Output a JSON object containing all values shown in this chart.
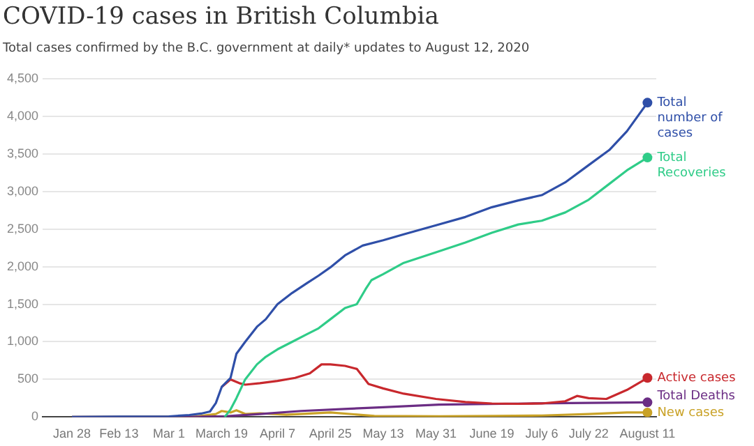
{
  "chart_data": {
    "type": "line",
    "title": "COVID-19 cases in British Columbia",
    "subtitle": "Total cases confirmed by the B.C. government at daily* updates to August 12, 2020",
    "xlim": [
      "2020-01-18",
      "2020-08-14"
    ],
    "xticks": [
      {
        "value": "2020-01-28",
        "label": "Jan 28"
      },
      {
        "value": "2020-02-13",
        "label": "Feb 13"
      },
      {
        "value": "2020-03-01",
        "label": "Mar 1"
      },
      {
        "value": "2020-03-19",
        "label": "March 19"
      },
      {
        "value": "2020-04-07",
        "label": "April 7"
      },
      {
        "value": "2020-04-25",
        "label": "April 25"
      },
      {
        "value": "2020-05-13",
        "label": "May 13"
      },
      {
        "value": "2020-05-31",
        "label": "May 31"
      },
      {
        "value": "2020-06-19",
        "label": "June 19"
      },
      {
        "value": "2020-07-06",
        "label": "July 6"
      },
      {
        "value": "2020-07-22",
        "label": "July 22"
      },
      {
        "value": "2020-08-11",
        "label": "August 11"
      }
    ],
    "ylim": [
      0,
      4500
    ],
    "yticks": [
      {
        "value": 0,
        "label": "0"
      },
      {
        "value": 500,
        "label": "500"
      },
      {
        "value": 1000,
        "label": "1,000"
      },
      {
        "value": 1500,
        "label": "1,500"
      },
      {
        "value": 2000,
        "label": "2,000"
      },
      {
        "value": 2500,
        "label": "2,500"
      },
      {
        "value": 3000,
        "label": "3,000"
      },
      {
        "value": 3500,
        "label": "3,500"
      },
      {
        "value": 4000,
        "label": "4,000"
      },
      {
        "value": 4500,
        "label": "4,500"
      }
    ],
    "grid": "y",
    "legend": false,
    "line_style": "solid",
    "series": [
      {
        "name": "Total number of cases",
        "color": "#2f4fa8",
        "x": [
          "2020-01-28",
          "2020-02-13",
          "2020-03-01",
          "2020-03-08",
          "2020-03-12",
          "2020-03-15",
          "2020-03-17",
          "2020-03-19",
          "2020-03-22",
          "2020-03-24",
          "2020-03-27",
          "2020-03-31",
          "2020-04-03",
          "2020-04-07",
          "2020-04-12",
          "2020-04-17",
          "2020-04-21",
          "2020-04-25",
          "2020-04-30",
          "2020-05-06",
          "2020-05-13",
          "2020-05-20",
          "2020-05-31",
          "2020-06-10",
          "2020-06-19",
          "2020-06-28",
          "2020-07-06",
          "2020-07-14",
          "2020-07-22",
          "2020-07-29",
          "2020-08-04",
          "2020-08-11"
        ],
        "values": [
          1,
          5,
          8,
          27,
          46,
          73,
          186,
          400,
          520,
          840,
          1000,
          1200,
          1300,
          1500,
          1650,
          1780,
          1880,
          1990,
          2150,
          2280,
          2350,
          2430,
          2550,
          2660,
          2790,
          2880,
          2950,
          3120,
          3350,
          3550,
          3800,
          4180
        ]
      },
      {
        "name": "Total Recoveries",
        "color": "#2fcc88",
        "x": [
          "2020-03-20",
          "2020-03-22",
          "2020-03-24",
          "2020-03-27",
          "2020-03-31",
          "2020-04-03",
          "2020-04-07",
          "2020-04-12",
          "2020-04-17",
          "2020-04-21",
          "2020-04-25",
          "2020-04-30",
          "2020-05-04",
          "2020-05-07",
          "2020-05-09",
          "2020-05-13",
          "2020-05-20",
          "2020-05-31",
          "2020-06-10",
          "2020-06-19",
          "2020-06-28",
          "2020-07-06",
          "2020-07-14",
          "2020-07-22",
          "2020-07-29",
          "2020-08-04",
          "2020-08-11"
        ],
        "values": [
          0,
          100,
          250,
          500,
          700,
          800,
          900,
          1000,
          1100,
          1180,
          1300,
          1450,
          1500,
          1700,
          1820,
          1900,
          2050,
          2190,
          2320,
          2450,
          2560,
          2610,
          2720,
          2890,
          3100,
          3280,
          3450
        ]
      },
      {
        "name": "Active cases",
        "color": "#c8282d",
        "x": [
          "2020-03-19",
          "2020-03-22",
          "2020-03-25",
          "2020-03-27",
          "2020-04-01",
          "2020-04-07",
          "2020-04-13",
          "2020-04-18",
          "2020-04-22",
          "2020-04-25",
          "2020-04-30",
          "2020-05-04",
          "2020-05-08",
          "2020-05-13",
          "2020-05-20",
          "2020-05-31",
          "2020-06-10",
          "2020-06-19",
          "2020-06-28",
          "2020-07-06",
          "2020-07-14",
          "2020-07-18",
          "2020-07-22",
          "2020-07-28",
          "2020-08-04",
          "2020-08-11"
        ],
        "values": [
          400,
          500,
          450,
          430,
          450,
          480,
          520,
          580,
          700,
          700,
          680,
          640,
          440,
          380,
          310,
          240,
          200,
          180,
          175,
          180,
          210,
          280,
          250,
          240,
          360,
          520
        ]
      },
      {
        "name": "Total Deaths",
        "color": "#6b2d84",
        "x": [
          "2020-01-28",
          "2020-03-08",
          "2020-03-20",
          "2020-04-01",
          "2020-04-15",
          "2020-05-01",
          "2020-05-13",
          "2020-06-01",
          "2020-07-01",
          "2020-08-11"
        ],
        "values": [
          0,
          0,
          10,
          40,
          80,
          110,
          130,
          165,
          180,
          195
        ]
      },
      {
        "name": "New cases",
        "color": "#c9a227",
        "x": [
          "2020-01-28",
          "2020-03-10",
          "2020-03-17",
          "2020-03-19",
          "2020-03-22",
          "2020-03-24",
          "2020-03-27",
          "2020-04-01",
          "2020-04-10",
          "2020-04-25",
          "2020-05-10",
          "2020-06-01",
          "2020-06-20",
          "2020-07-06",
          "2020-07-22",
          "2020-08-04",
          "2020-08-11"
        ],
        "values": [
          0,
          5,
          40,
          80,
          60,
          90,
          40,
          50,
          30,
          60,
          15,
          10,
          15,
          20,
          40,
          60,
          60
        ]
      }
    ]
  }
}
